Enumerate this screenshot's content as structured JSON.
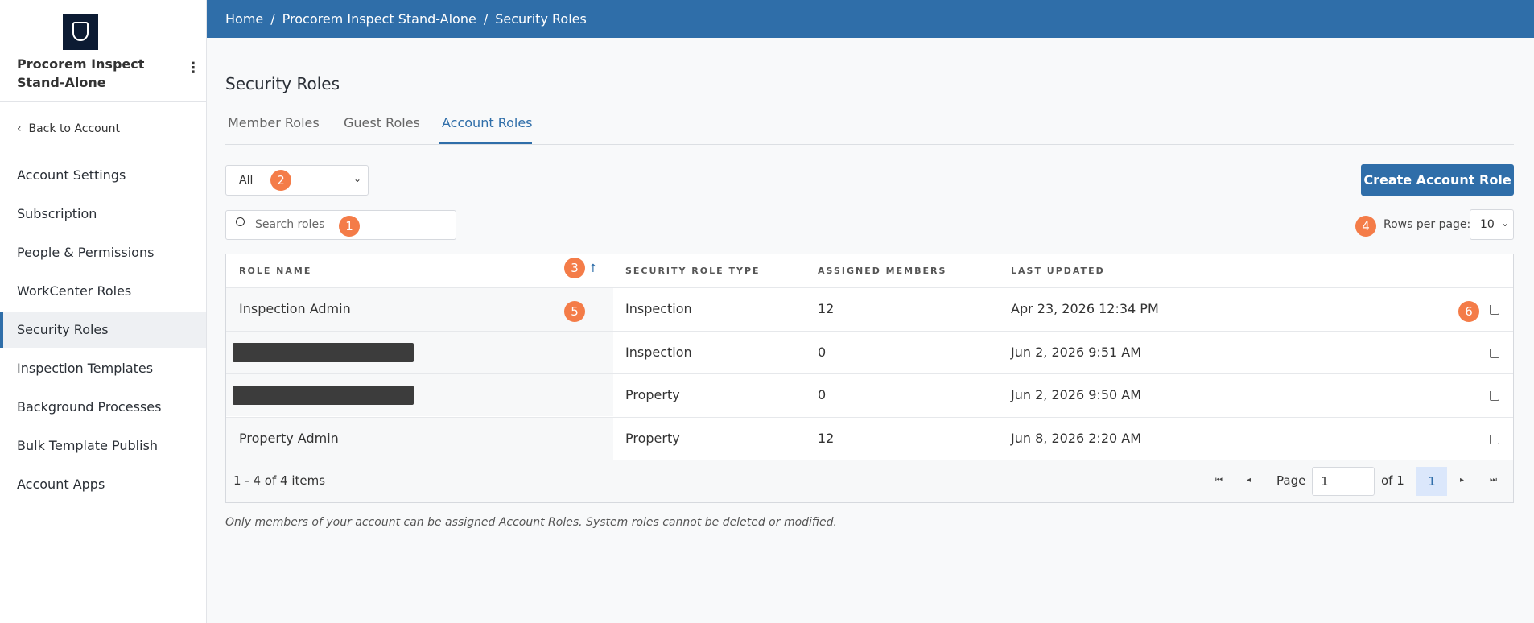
{
  "sidebar": {
    "org_name": "Procorem Inspect Stand-Alone",
    "back_link": "Back to Account",
    "nav": [
      "Account Settings",
      "Subscription",
      "People & Permissions",
      "WorkCenter Roles",
      "Security Roles",
      "Inspection Templates",
      "Background Processes",
      "Bulk Template Publish",
      "Account Apps"
    ],
    "active_index": 4
  },
  "breadcrumb": [
    "Home",
    "Procorem Inspect Stand-Alone",
    "Security Roles"
  ],
  "page_title": "Security Roles",
  "tabs": [
    "Member Roles",
    "Guest Roles",
    "Account Roles"
  ],
  "active_tab": 2,
  "filter": "All",
  "search_placeholder": "Search roles",
  "create_button": "Create Account Role",
  "rows_per_page": {
    "label": "Rows per page:",
    "value": "10"
  },
  "table": {
    "headers": [
      "ROLE NAME",
      "SECURITY ROLE TYPE",
      "ASSIGNED MEMBERS",
      "LAST UPDATED"
    ],
    "rows": [
      [
        "Inspection Admin",
        "Inspection",
        "12",
        "Apr 23, 2026 12:34 PM"
      ],
      [
        null,
        "Inspection",
        "0",
        "Jun 2, 2026 9:51 AM"
      ],
      [
        null,
        "Property",
        "0",
        "Jun 2, 2026 9:50 AM"
      ],
      [
        "Property Admin",
        "Property",
        "12",
        "Jun 8, 2026 2:20 AM"
      ]
    ]
  },
  "pagination": {
    "summary": "1 - 4 of 4 items",
    "page_label": "Page",
    "page_input": "1",
    "of_label": "of 1",
    "current_page": "1"
  },
  "footnote": "Only members of your account can be assigned Account Roles. System roles cannot be deleted or modified.",
  "badges": [
    "1",
    "2",
    "3",
    "4",
    "5",
    "6"
  ]
}
